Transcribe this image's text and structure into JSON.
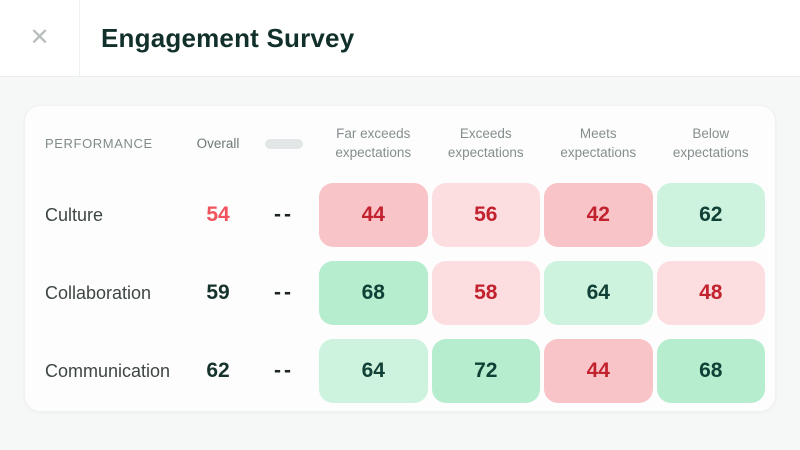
{
  "header": {
    "title": "Engagement Survey",
    "close_icon": "✕"
  },
  "table": {
    "performance_label": "PERFORMANCE",
    "overall_label": "Overall",
    "columns": [
      "Far exceeds expectations",
      "Exceeds expectations",
      "Meets expectations",
      "Below expectations"
    ],
    "rows": [
      {
        "label": "Culture",
        "overall": "54",
        "overall_tone": "red",
        "trend": "--",
        "cells": [
          {
            "value": "44",
            "tone": "neg-strong"
          },
          {
            "value": "56",
            "tone": "neg-light"
          },
          {
            "value": "42",
            "tone": "neg-strong"
          },
          {
            "value": "62",
            "tone": "pos-light"
          }
        ]
      },
      {
        "label": "Collaboration",
        "overall": "59",
        "overall_tone": "dark",
        "trend": "--",
        "cells": [
          {
            "value": "68",
            "tone": "pos-strong"
          },
          {
            "value": "58",
            "tone": "neg-light"
          },
          {
            "value": "64",
            "tone": "pos-light"
          },
          {
            "value": "48",
            "tone": "neg-light"
          }
        ]
      },
      {
        "label": "Communication",
        "overall": "62",
        "overall_tone": "dark",
        "trend": "--",
        "cells": [
          {
            "value": "64",
            "tone": "pos-light"
          },
          {
            "value": "72",
            "tone": "pos-strong"
          },
          {
            "value": "44",
            "tone": "neg-strong"
          },
          {
            "value": "68",
            "tone": "pos-strong"
          }
        ]
      }
    ]
  },
  "colors": {
    "negative_strong_bg": "#f9c4c8",
    "negative_light_bg": "#fcdee1",
    "positive_light_bg": "#cdf3de",
    "positive_strong_bg": "#b6edcf",
    "negative_text": "#c2222e",
    "positive_text": "#114036",
    "overall_low": "#f0545f",
    "overall_neutral": "#17332e"
  }
}
